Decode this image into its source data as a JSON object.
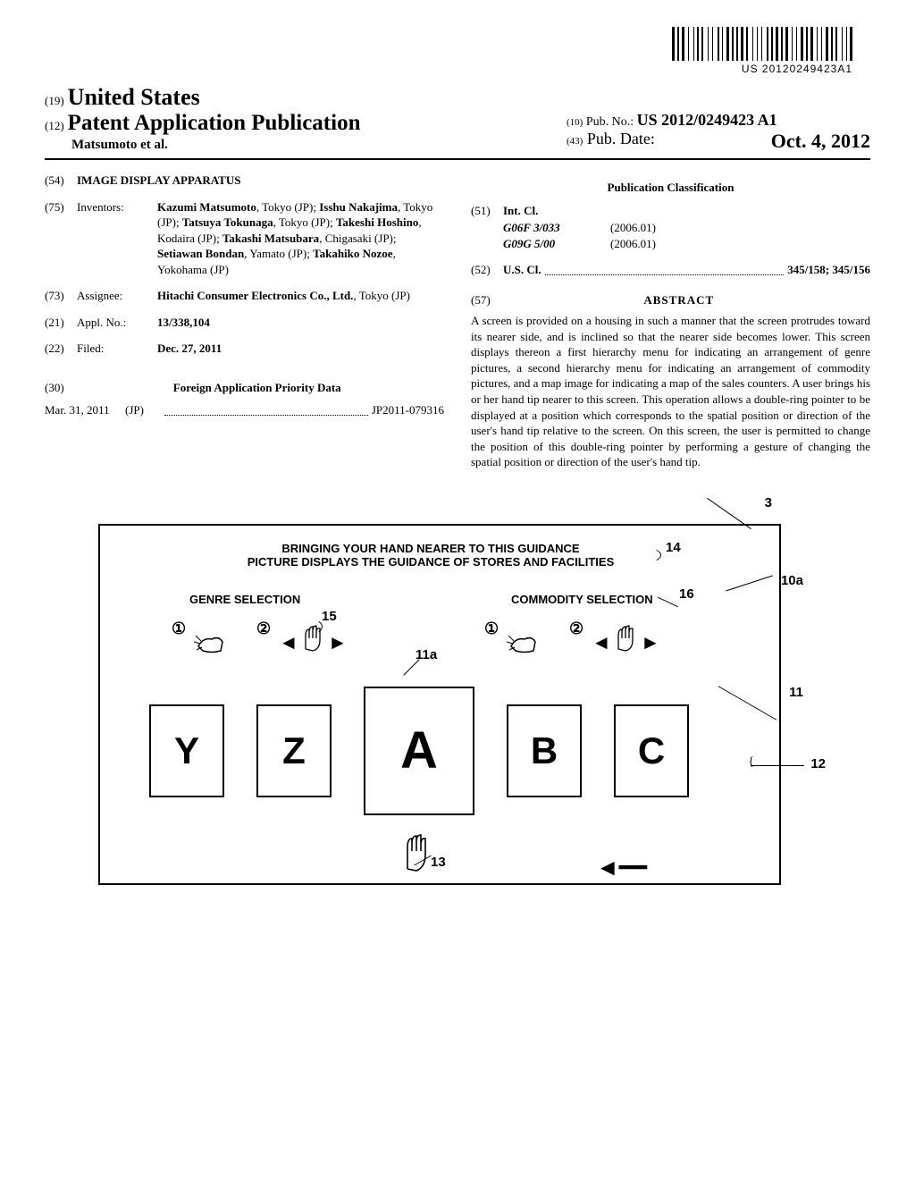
{
  "barcode": {
    "text": "US 20120249423A1",
    "line_widths": [
      3,
      1,
      2,
      1,
      3,
      2,
      1,
      3,
      1,
      1,
      2,
      1,
      2,
      3,
      1,
      2,
      1,
      3,
      2,
      1,
      1,
      2,
      3,
      1,
      2,
      1,
      2,
      1,
      3,
      1,
      2,
      3,
      1,
      2,
      1,
      2,
      1,
      3,
      2,
      1,
      2,
      1,
      3,
      1,
      2,
      1,
      3,
      2,
      1,
      2,
      1,
      2,
      3,
      1,
      2,
      1,
      3,
      2,
      1,
      2,
      1,
      2,
      3,
      1,
      2,
      1,
      2,
      3,
      1,
      2,
      1,
      1,
      3
    ]
  },
  "header": {
    "country_num": "(19)",
    "country": "United States",
    "pub_type_num": "(12)",
    "pub_type": "Patent Application Publication",
    "authors": "Matsumoto et al.",
    "pubno_num": "(10)",
    "pubno_label": "Pub. No.:",
    "pubno": "US 2012/0249423 A1",
    "pubdate_num": "(43)",
    "pubdate_label": "Pub. Date:",
    "pubdate": "Oct. 4, 2012"
  },
  "left": {
    "title_num": "(54)",
    "title": "IMAGE DISPLAY APPARATUS",
    "inventors_num": "(75)",
    "inventors_label": "Inventors:",
    "inventors": "<b>Kazumi Matsumoto</b>, Tokyo (JP); <b>Isshu Nakajima</b>, Tokyo (JP); <b>Tatsuya Tokunaga</b>, Tokyo (JP); <b>Takeshi Hoshino</b>, Kodaira (JP); <b>Takashi Matsubara</b>, Chigasaki (JP); <b>Setiawan Bondan</b>, Yamato (JP); <b>Takahiko Nozoe</b>, Yokohama (JP)",
    "assignee_num": "(73)",
    "assignee_label": "Assignee:",
    "assignee": "<b>Hitachi Consumer Electronics Co., Ltd.</b>, Tokyo (JP)",
    "applno_num": "(21)",
    "applno_label": "Appl. No.:",
    "applno": "13/338,104",
    "filed_num": "(22)",
    "filed_label": "Filed:",
    "filed": "Dec. 27, 2011",
    "foreign_num": "(30)",
    "foreign_title": "Foreign Application Priority Data",
    "foreign_date": "Mar. 31, 2011",
    "foreign_country": "(JP)",
    "foreign_app": "JP2011-079316"
  },
  "right": {
    "pubclass_title": "Publication Classification",
    "intcl_num": "(51)",
    "intcl_label": "Int. Cl.",
    "intcl_1_code": "G06F 3/033",
    "intcl_1_year": "(2006.01)",
    "intcl_2_code": "G09G 5/00",
    "intcl_2_year": "(2006.01)",
    "uscl_num": "(52)",
    "uscl_label": "U.S. Cl.",
    "uscl_val": "345/158; 345/156",
    "abstract_num": "(57)",
    "abstract_title": "ABSTRACT",
    "abstract_text": "A screen is provided on a housing in such a manner that the screen protrudes toward its nearer side, and is inclined so that the nearer side becomes lower. This screen displays thereon a first hierarchy menu for indicating an arrangement of genre pictures, a second hierarchy menu for indicating an arrangement of commodity pictures, and a map image for indicating a map of the sales counters. A user brings his or her hand tip nearer to this screen. This operation allows a double-ring pointer to be displayed at a position which corresponds to the spatial position or direction of the user's hand tip relative to the screen. On this screen, the user is permitted to change the position of this double-ring pointer by performing a gesture of changing the spatial position or direction of the user's hand tip."
  },
  "figure": {
    "ref_3": "3",
    "ref_14": "14",
    "ref_10a": "10a",
    "ref_15": "15",
    "ref_16": "16",
    "ref_11a": "11a",
    "ref_11": "11",
    "ref_12": "12",
    "ref_13": "13",
    "banner_line1": "BRINGING YOUR HAND NEARER TO THIS GUIDANCE",
    "banner_line2": "PICTURE DISPLAYS THE GUIDANCE OF STORES AND FACILITIES",
    "genre_label": "GENRE SELECTION",
    "commodity_label": "COMMODITY SELECTION",
    "step1": "①",
    "step2": "②",
    "cards": [
      "Y",
      "Z",
      "A",
      "B",
      "C"
    ],
    "card_font_sizes": [
      42,
      42,
      58,
      42,
      42
    ],
    "card_widths": [
      80,
      80,
      120,
      80,
      80
    ],
    "card_heights": [
      100,
      100,
      140,
      100,
      100
    ]
  }
}
